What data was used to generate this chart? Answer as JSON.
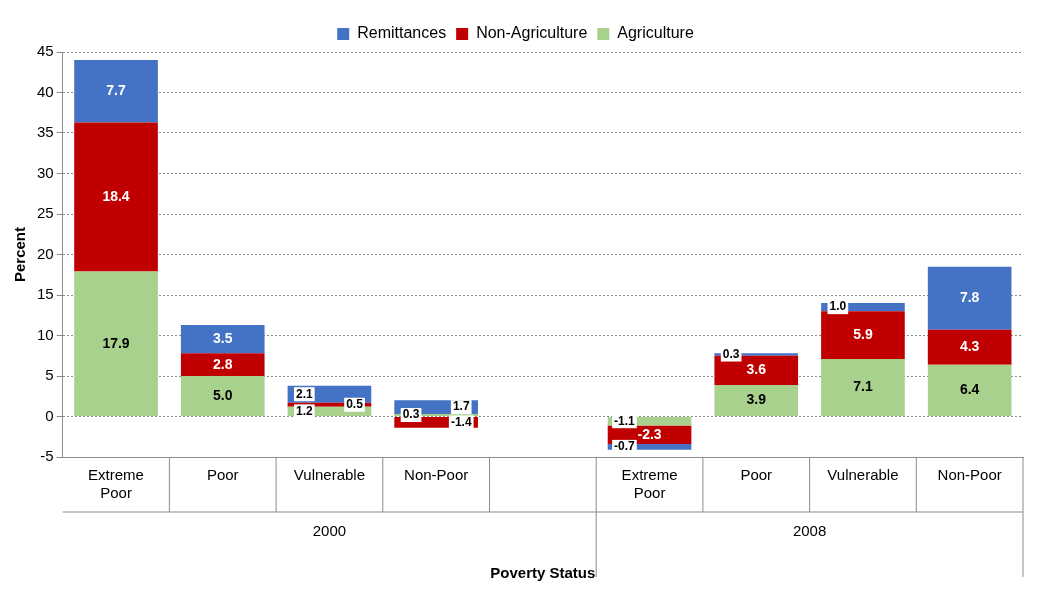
{
  "chart_data": {
    "type": "bar",
    "stacked": true,
    "xlabel": "Poverty Status",
    "ylabel": "Percent",
    "categories": [
      "Extreme Poor",
      "Poor",
      "Vulnerable",
      "Non-Poor",
      null,
      "Extreme Poor",
      "Poor",
      "Vulnerable",
      "Non-Poor"
    ],
    "series": [
      {
        "name": "Agriculture",
        "color": "#a9d18e",
        "values": [
          17.9,
          5.0,
          1.2,
          0.3,
          null,
          -1.1,
          3.9,
          7.1,
          6.4
        ],
        "value_labels": [
          "17.9",
          "5.0",
          "1.2",
          "0.3",
          null,
          "-1.1",
          "3.9",
          "7.1",
          "6.4"
        ]
      },
      {
        "name": "Non-Agriculture",
        "color": "#c00000",
        "values": [
          18.4,
          2.8,
          0.5,
          -1.4,
          null,
          -2.3,
          3.6,
          5.9,
          4.3
        ],
        "value_labels": [
          "18.4",
          "2.8",
          "0.5",
          "-1.4",
          null,
          "-2.3",
          "3.6",
          "5.9",
          "4.3"
        ]
      },
      {
        "name": "Remittances",
        "color": "#4472c4",
        "values": [
          7.7,
          3.5,
          2.1,
          1.7,
          null,
          -0.7,
          0.3,
          1.0,
          7.8
        ],
        "value_labels": [
          "7.7",
          "3.5",
          "2.1",
          "1.7",
          null,
          "-0.7",
          "0.3",
          "1.0",
          "7.8"
        ]
      }
    ],
    "ylim": [
      -5,
      45
    ],
    "yticks": [
      -5,
      0,
      5,
      10,
      15,
      20,
      25,
      30,
      35,
      40,
      45
    ],
    "grid": "y",
    "legend": "top",
    "annotations": [
      "2000",
      "2008"
    ]
  }
}
